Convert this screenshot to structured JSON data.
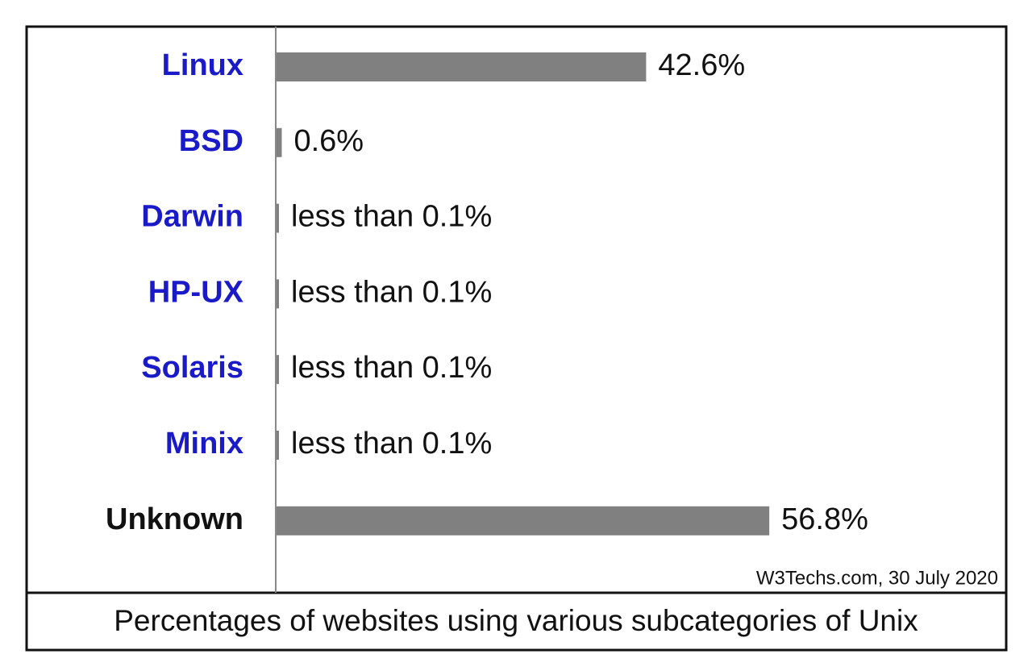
{
  "chart_data": {
    "type": "hbar",
    "caption": "Percentages of websites using various subcategories of Unix",
    "source": "W3Techs.com, 30 July 2020",
    "categories": [
      "Linux",
      "BSD",
      "Darwin",
      "HP-UX",
      "Solaris",
      "Minix",
      "Unknown"
    ],
    "label_colors": [
      "#1a1ac8",
      "#1a1ac8",
      "#1a1ac8",
      "#1a1ac8",
      "#1a1ac8",
      "#1a1ac8",
      "#111111"
    ],
    "values": [
      42.6,
      0.6,
      0.05,
      0.05,
      0.05,
      0.05,
      56.8
    ],
    "value_labels": [
      "42.6%",
      "0.6%",
      "less than 0.1%",
      "less than 0.1%",
      "less than 0.1%",
      "less than 0.1%",
      "56.8%"
    ],
    "color": "#808080"
  }
}
